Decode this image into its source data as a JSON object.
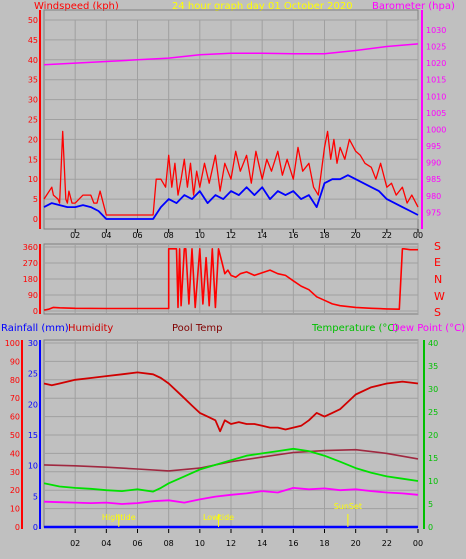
{
  "header": {
    "left_label": "Windspeed (kph)",
    "title": "24 hour graph day   01 October 2020",
    "right_label": "Barometer (hpa)"
  },
  "wind_dir_labels": [
    "S",
    "E",
    "N",
    "W",
    "S"
  ],
  "lower_header": {
    "rainfall": "Rainfall (mm)",
    "humidity": "Humidity",
    "pool": "Pool Temp",
    "temperature": "Temperature (°C)",
    "dewpoint": "Dew Point (°C)"
  },
  "annotations": [
    "Hightide",
    "Lowtide",
    "SunSet"
  ],
  "colors": {
    "background": "#c0c0c0",
    "wind": "#ff0000",
    "wind_avg": "#0000ff",
    "barometer": "#ff00ff",
    "humidity": "#d00000",
    "pool": "#a02840",
    "temperature": "#00e000",
    "dewpoint": "#ff00ff",
    "rainfall": "#0000ff",
    "annotation": "#ffff00"
  },
  "chart_data": [
    {
      "type": "line",
      "name": "windspeed-barometer",
      "x_ticks": [
        "02",
        "04",
        "06",
        "08",
        "10",
        "12",
        "14",
        "16",
        "18",
        "20",
        "22",
        "00"
      ],
      "y_left_ticks": [
        0,
        5,
        10,
        15,
        20,
        25,
        30,
        35,
        40,
        45,
        50
      ],
      "y_left_range": [
        0,
        50
      ],
      "y_right_ticks": [
        975,
        980,
        985,
        990,
        995,
        1000,
        1005,
        1010,
        1015,
        1020,
        1025,
        1030
      ],
      "y_right_range": [
        973,
        1033
      ],
      "x_range": [
        0,
        24
      ],
      "series": [
        {
          "name": "Windspeed (kph)",
          "axis": "left",
          "x": [
            0,
            0.5,
            0.6,
            0.9,
            1,
            1.2,
            1.4,
            1.5,
            1.6,
            1.8,
            2,
            2.5,
            3,
            3.2,
            3.4,
            3.6,
            3.8,
            4,
            5,
            6,
            6.5,
            7,
            7.2,
            7.5,
            7.8,
            8,
            8.2,
            8.4,
            8.6,
            8.8,
            9,
            9.2,
            9.4,
            9.6,
            9.8,
            10,
            10.3,
            10.6,
            11,
            11.3,
            11.6,
            12,
            12.3,
            12.6,
            13,
            13.3,
            13.6,
            14,
            14.3,
            14.6,
            15,
            15.3,
            15.6,
            16,
            16.3,
            16.6,
            17,
            17.3,
            17.6,
            18,
            18.2,
            18.4,
            18.6,
            18.8,
            19,
            19.3,
            19.6,
            20,
            20.3,
            20.6,
            21,
            21.3,
            21.6,
            22,
            22.3,
            22.6,
            23,
            23.3,
            23.6,
            24
          ],
          "values": [
            5,
            8,
            6,
            5,
            4,
            22,
            5,
            4,
            7,
            4,
            4,
            6,
            6,
            4,
            4,
            7,
            4,
            1,
            1,
            1,
            1,
            1,
            10,
            10,
            8,
            16,
            8,
            14,
            6,
            10,
            15,
            8,
            14,
            6,
            12,
            8,
            14,
            9,
            16,
            7,
            14,
            10,
            17,
            12,
            16,
            9,
            17,
            10,
            15,
            12,
            17,
            11,
            15,
            10,
            18,
            12,
            14,
            8,
            6,
            18,
            22,
            15,
            20,
            14,
            18,
            15,
            20,
            17,
            16,
            14,
            13,
            10,
            14,
            8,
            9,
            6,
            8,
            4,
            6,
            3
          ]
        },
        {
          "name": "Wind average",
          "axis": "left",
          "x": [
            0,
            0.5,
            1,
            1.5,
            2,
            2.5,
            3,
            3.5,
            4,
            5,
            6,
            7,
            7.5,
            8,
            8.5,
            9,
            9.5,
            10,
            10.5,
            11,
            11.5,
            12,
            12.5,
            13,
            13.5,
            14,
            14.5,
            15,
            15.5,
            16,
            16.5,
            17,
            17.5,
            18,
            18.5,
            19,
            19.5,
            20,
            20.5,
            21,
            21.5,
            22,
            22.5,
            23,
            23.5,
            24
          ],
          "values": [
            3,
            4,
            3.5,
            3,
            3,
            3.5,
            3,
            2,
            0,
            0,
            0,
            0,
            3,
            5,
            4,
            6,
            5,
            7,
            4,
            6,
            5,
            7,
            6,
            8,
            6,
            8,
            5,
            7,
            6,
            7,
            5,
            6,
            3,
            9,
            10,
            10,
            11,
            10,
            9,
            8,
            7,
            5,
            4,
            3,
            2,
            1
          ]
        },
        {
          "name": "Barometer (hpa)",
          "axis": "right",
          "x": [
            0,
            2,
            4,
            6,
            8,
            10,
            12,
            14,
            16,
            18,
            20,
            22,
            24
          ],
          "values": [
            1019.5,
            1020,
            1020.5,
            1021,
            1021.5,
            1022.5,
            1023,
            1023,
            1022.8,
            1022.8,
            1023.8,
            1025,
            1025.8
          ]
        }
      ]
    },
    {
      "type": "line",
      "name": "wind-direction",
      "y_ticks": [
        0,
        90,
        180,
        270,
        360
      ],
      "y_range": [
        0,
        360
      ],
      "x_range": [
        0,
        24
      ],
      "series": [
        {
          "name": "Wind direction",
          "x": [
            0,
            0.3,
            0.6,
            1,
            2,
            4,
            6,
            7,
            7.5,
            8,
            8,
            8.5,
            8.6,
            8.7,
            8.8,
            9,
            9.1,
            9.3,
            9.5,
            9.7,
            10,
            10.2,
            10.4,
            10.6,
            10.8,
            11,
            11.2,
            11.4,
            11.6,
            11.8,
            12,
            12.3,
            12.6,
            13,
            13.5,
            14,
            14.5,
            15,
            15.5,
            16,
            16.5,
            17,
            17.5,
            18,
            18.5,
            19,
            20,
            21,
            22,
            22.8,
            23,
            23.1,
            23.5,
            24
          ],
          "values": [
            5,
            10,
            20,
            18,
            15,
            14,
            14,
            14,
            14,
            14,
            350,
            350,
            20,
            350,
            30,
            350,
            350,
            40,
            350,
            20,
            350,
            40,
            300,
            30,
            350,
            20,
            350,
            280,
            210,
            230,
            200,
            190,
            210,
            220,
            200,
            215,
            230,
            210,
            200,
            170,
            140,
            120,
            80,
            60,
            40,
            30,
            20,
            15,
            12,
            10,
            350,
            350,
            345,
            345
          ]
        }
      ]
    },
    {
      "type": "line",
      "name": "rain-humidity-temperature",
      "y_left_humidity_ticks": [
        0,
        10,
        20,
        30,
        40,
        50,
        60,
        70,
        80,
        90,
        100
      ],
      "y_left_humidity_range": [
        0,
        100
      ],
      "y_left_rain_ticks": [
        0,
        5,
        10,
        15,
        20,
        25,
        30
      ],
      "y_left_rain_range": [
        0,
        30
      ],
      "y_right_ticks": [
        0,
        5,
        10,
        15,
        20,
        25,
        30,
        35,
        40
      ],
      "y_right_range": [
        0,
        40
      ],
      "x_range": [
        0,
        24
      ],
      "series": [
        {
          "name": "Humidity",
          "axis": "humidity",
          "x": [
            0,
            0.5,
            1,
            1.5,
            2,
            3,
            4,
            5,
            6,
            7,
            7.5,
            8,
            8.5,
            9,
            9.5,
            10,
            10.5,
            11,
            11.3,
            11.6,
            12,
            12.5,
            13,
            13.5,
            14,
            14.5,
            15,
            15.5,
            16,
            16.5,
            17,
            17.5,
            18,
            18.5,
            19,
            19.5,
            20,
            21,
            22,
            23,
            24
          ],
          "values": [
            78,
            77,
            78,
            79,
            80,
            81,
            82,
            83,
            84,
            83,
            81,
            78,
            74,
            70,
            66,
            62,
            60,
            58,
            52,
            58,
            56,
            57,
            56,
            56,
            55,
            54,
            54,
            53,
            54,
            55,
            58,
            62,
            60,
            62,
            64,
            68,
            72,
            76,
            78,
            79,
            78
          ]
        },
        {
          "name": "Pool Temp",
          "axis": "right",
          "x": [
            0,
            2,
            4,
            6,
            8,
            10,
            12,
            14,
            16,
            18,
            20,
            22,
            24
          ],
          "values": [
            13.5,
            13.3,
            13,
            12.6,
            12.2,
            12.8,
            14.2,
            15.2,
            16.2,
            16.6,
            16.8,
            16.0,
            14.8
          ]
        },
        {
          "name": "Temperature (°C)",
          "axis": "right",
          "x": [
            0,
            1,
            2,
            3,
            4,
            5,
            6,
            7,
            7.5,
            8,
            9,
            10,
            11,
            12,
            13,
            14,
            15,
            16,
            17,
            18,
            19,
            20,
            21,
            22,
            23,
            24
          ],
          "values": [
            9.5,
            8.8,
            8.5,
            8.3,
            8.0,
            7.8,
            8.2,
            7.7,
            8.5,
            9.5,
            11,
            12.5,
            13.5,
            14.5,
            15.5,
            16,
            16.5,
            17,
            16.5,
            15.5,
            14.2,
            12.8,
            11.8,
            11,
            10.5,
            10
          ]
        },
        {
          "name": "Dew Point (°C)",
          "axis": "right",
          "x": [
            0,
            1,
            2,
            3,
            4,
            5,
            6,
            7,
            8,
            9,
            10,
            11,
            12,
            13,
            14,
            15,
            16,
            17,
            18,
            19,
            20,
            21,
            22,
            23,
            24
          ],
          "values": [
            5.5,
            5.4,
            5.3,
            5.2,
            5.3,
            5.0,
            5.2,
            5.6,
            5.8,
            5.3,
            6,
            6.6,
            7,
            7.3,
            7.8,
            7.5,
            8.5,
            8.2,
            8.4,
            8,
            8.2,
            7.8,
            7.5,
            7.3,
            7
          ]
        },
        {
          "name": "Rainfall (mm)",
          "axis": "rain",
          "x": [
            0,
            24
          ],
          "values": [
            0,
            0
          ]
        }
      ],
      "annotations": [
        {
          "label": "Hightide",
          "x": 4.8
        },
        {
          "label": "Lowtide",
          "x": 11.2
        },
        {
          "label": "SunSet",
          "x": 19.5
        }
      ]
    }
  ]
}
